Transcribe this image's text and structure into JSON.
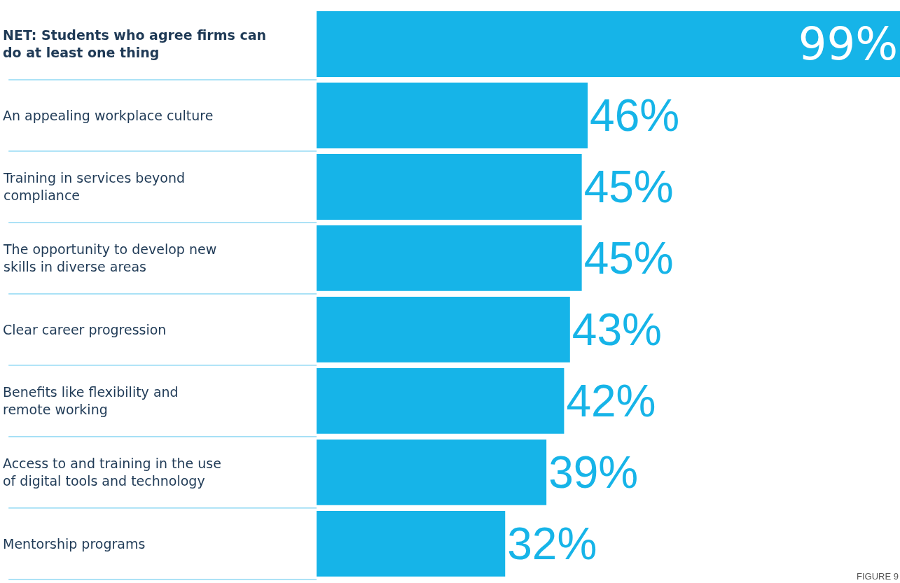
{
  "chart_data": {
    "type": "bar",
    "orientation": "horizontal",
    "categories": [
      "NET: Students who agree firms can do at least one thing",
      "An appealing workplace culture",
      "Training in services beyond compliance",
      "The opportunity to develop new skills in diverse areas",
      "Clear career progression",
      "Benefits like flexibility and remote working",
      "Access to and training in the use of digital tools and technology",
      "Mentorship programs"
    ],
    "values": [
      99,
      46,
      45,
      45,
      43,
      42,
      39,
      32
    ],
    "value_labels": [
      "99%",
      "46%",
      "45%",
      "45%",
      "43%",
      "42%",
      "39%",
      "32%"
    ],
    "color": "#16b4e8",
    "annotations": [
      "FIGURE 9"
    ]
  }
}
